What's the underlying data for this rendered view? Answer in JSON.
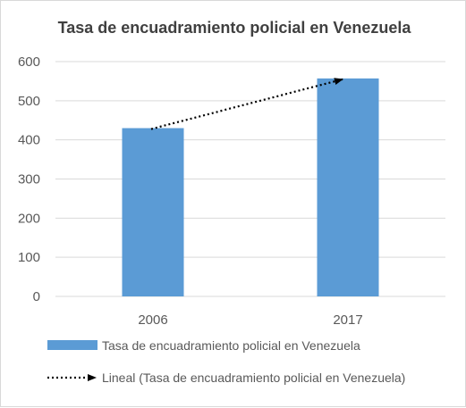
{
  "chart_data": {
    "type": "bar",
    "title": "Tasa de encuadramiento policial en Venezuela",
    "xlabel": "",
    "ylabel": "",
    "categories": [
      "2006",
      "2017"
    ],
    "series": [
      {
        "name": "Tasa de encuadramiento policial en Venezuela",
        "values": [
          430,
          557
        ],
        "color": "#5b9bd5"
      }
    ],
    "trendline": {
      "name": "Lineal (Tasa de encuadramiento policial en Venezuela)",
      "type": "linear",
      "style": "dotted-arrow",
      "color": "#000000"
    },
    "ylim": [
      0,
      600
    ],
    "yticks": [
      0,
      100,
      200,
      300,
      400,
      500,
      600
    ],
    "grid": true,
    "legend_position": "bottom"
  }
}
